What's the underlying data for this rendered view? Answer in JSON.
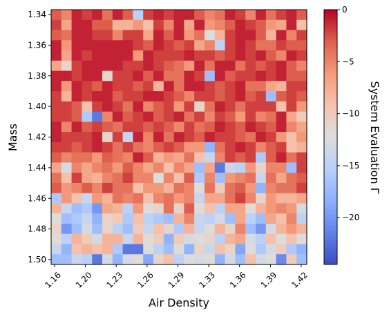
{
  "chart_data": {
    "type": "heatmap",
    "xlabel": "Air Density",
    "ylabel": "Mass",
    "colorbar_label": "System Evaluation Γ",
    "colormap": "coolwarm",
    "vmin": -24.5,
    "vmax": 0,
    "x_tick_labels": [
      "1.16",
      "1.20",
      "1.23",
      "1.26",
      "1.29",
      "1.33",
      "1.36",
      "1.39",
      "1.42"
    ],
    "y_tick_labels": [
      "1.34",
      "1.36",
      "1.38",
      "1.40",
      "1.42",
      "1.44",
      "1.46",
      "1.48",
      "1.50"
    ],
    "colorbar_tick_labels": [
      "0",
      "−5",
      "−10",
      "−15",
      "−20"
    ],
    "colorbar_tick_values": [
      0,
      -5,
      -10,
      -15,
      -20
    ],
    "x_range": [
      1.155,
      1.425
    ],
    "y_range": [
      1.335,
      1.5
    ],
    "grid": false,
    "cols": 25,
    "rows": 25,
    "values": [
      [
        -3,
        -5,
        -1,
        -2,
        -1,
        -4,
        -1,
        -3,
        -15,
        -2,
        -1,
        -2,
        -1,
        -1,
        -3,
        -5,
        -4,
        -1,
        -2,
        -5,
        -1,
        -4,
        -2,
        -1,
        -3
      ],
      [
        -2,
        -7,
        -1,
        -1,
        -3,
        -3,
        -8,
        -8,
        -6,
        -9,
        -2,
        -5,
        -1,
        -7,
        -1,
        -6,
        -5,
        -3,
        -1,
        -2,
        -3,
        -6,
        -7,
        -1,
        -9
      ],
      [
        -3,
        -4,
        -1,
        -1,
        -2,
        -2,
        -5,
        -2,
        -2,
        -7,
        -1,
        -3,
        -1,
        -6,
        -4,
        -12,
        -8,
        -2,
        -1,
        -1,
        -3,
        -8,
        -1,
        -5,
        -2
      ],
      [
        -1,
        -6,
        -1,
        -1,
        -1,
        -1,
        -1,
        -1,
        -2,
        -3,
        -1,
        -2,
        -3,
        -2,
        -7,
        -5,
        -15,
        -2,
        -1,
        -2,
        -4,
        -4,
        -2,
        -3,
        -3
      ],
      [
        -1,
        -7,
        -1,
        -2,
        -1,
        -1,
        -1,
        -1,
        -6,
        -1,
        -2,
        -2,
        -2,
        -1,
        -2,
        -2,
        -3,
        -2,
        -1,
        -2,
        -1,
        -3,
        -5,
        -1,
        -2
      ],
      [
        -7,
        -11,
        -2,
        -1,
        -1,
        -1,
        -1,
        -2,
        -2,
        -1,
        -2,
        -3,
        -4,
        -6,
        -1,
        -4,
        -1,
        -1,
        -4,
        -2,
        -3,
        -2,
        -1,
        -3,
        -5
      ],
      [
        -1,
        -1,
        -2,
        -1,
        -1,
        -11,
        -2,
        -2,
        -1,
        -3,
        -1,
        -4,
        -4,
        -1,
        -2,
        -17,
        -1,
        -3,
        -2,
        -2,
        -1,
        -2,
        -1,
        -3,
        -3
      ],
      [
        -1,
        -6,
        -1,
        -2,
        -3,
        -1,
        -2,
        -2,
        -3,
        -2,
        -8,
        -1,
        -4,
        -1,
        -1,
        -2,
        -3,
        -2,
        -1,
        -4,
        -4,
        -7,
        -8,
        -2,
        -2
      ],
      [
        -2,
        -8,
        -1,
        -2,
        -1,
        -1,
        -3,
        -2,
        -2,
        -1,
        -1,
        -2,
        -3,
        -5,
        -2,
        -2,
        -3,
        -2,
        -1,
        -3,
        -2,
        -17,
        -3,
        -2,
        -3
      ],
      [
        -2,
        -2,
        -3,
        -9,
        -2,
        -1,
        -2,
        -4,
        -1,
        -5,
        -3,
        -2,
        -6,
        -2,
        -11,
        -4,
        -1,
        -2,
        -4,
        -2,
        -2,
        -2,
        -9,
        -2,
        -6
      ],
      [
        -2,
        -2,
        -3,
        -16,
        -22,
        -5,
        -1,
        -3,
        -2,
        -1,
        -3,
        -2,
        -1,
        -4,
        -2,
        -5,
        -2,
        -3,
        -6,
        -2,
        -5,
        -4,
        -1,
        -7,
        -10
      ],
      [
        -1,
        -5,
        -1,
        -3,
        -2,
        -3,
        -4,
        -2,
        -2,
        -3,
        -2,
        -3,
        -5,
        -2,
        -4,
        -3,
        -1,
        -2,
        -3,
        -1,
        -2,
        -3,
        -1,
        -5,
        -7
      ],
      [
        -1,
        -2,
        -2,
        -2,
        -1,
        -11,
        -2,
        -14,
        -1,
        -5,
        -1,
        -4,
        -1,
        -2,
        -3,
        -1,
        -2,
        -2,
        -3,
        -4,
        -1,
        -2,
        -6,
        -9,
        -6
      ],
      [
        -2,
        -2,
        -3,
        -2,
        -1,
        -2,
        -4,
        -2,
        -4,
        -5,
        -3,
        -2,
        -3,
        -6,
        -6,
        -18,
        -4,
        -2,
        -1,
        -2,
        -5,
        -3,
        -2,
        -9,
        -8
      ],
      [
        -3,
        -5,
        -4,
        -4,
        -6,
        -3,
        -4,
        -5,
        -1,
        -3,
        -8,
        -6,
        -7,
        -4,
        -9,
        -14,
        -5,
        -2,
        -3,
        -2,
        -16,
        -3,
        -1,
        -4,
        -2
      ],
      [
        -7,
        -13,
        -5,
        -7,
        -5,
        -4,
        -6,
        -3,
        -5,
        -7,
        -5,
        -9,
        -5,
        -7,
        -17,
        -7,
        -22,
        -14,
        -15,
        -6,
        -11,
        -5,
        -5,
        -17,
        -2
      ],
      [
        -4,
        -9,
        -2,
        -7,
        -8,
        -5,
        -4,
        -2,
        -5,
        -5,
        -12,
        -5,
        -9,
        -3,
        -16,
        -5,
        -17,
        -6,
        -5,
        -4,
        -14,
        -4,
        -7,
        -4,
        -3
      ],
      [
        -3,
        -6,
        -5,
        -3,
        -5,
        -2,
        -4,
        -4,
        -9,
        -6,
        -6,
        -8,
        -4,
        -5,
        -12,
        -4,
        -10,
        -4,
        -3,
        -6,
        -18,
        -5,
        -4,
        -4,
        -2
      ],
      [
        -16,
        -6,
        -9,
        -14,
        -6,
        -8,
        -4,
        -5,
        -4,
        -9,
        -5,
        -4,
        -6,
        -5,
        -14,
        -7,
        -7,
        -4,
        -2,
        -5,
        -11,
        -6,
        -8,
        -8,
        -7
      ],
      [
        -8,
        -14,
        -17,
        -16,
        -20,
        -7,
        -8,
        -15,
        -6,
        -12,
        -11,
        -4,
        -11,
        -3,
        -12,
        -9,
        -15,
        -7,
        -7,
        -12,
        -8,
        -6,
        -5,
        -6,
        -13
      ],
      [
        -12,
        -17,
        -16,
        -14,
        -18,
        -11,
        -10,
        -16,
        -9,
        -15,
        -16,
        -17,
        -8,
        -5,
        -14,
        -15,
        -13,
        -17,
        -7,
        -15,
        -17,
        -7,
        -9,
        -5,
        -15
      ],
      [
        -11,
        -20,
        -17,
        -13,
        -17,
        -11,
        -15,
        -17,
        -10,
        -14,
        -9,
        -11,
        -16,
        -8,
        -14,
        -12,
        -8,
        -11,
        -5,
        -17,
        -20,
        -13,
        -8,
        -6,
        -8
      ],
      [
        -12,
        -15,
        -8,
        -10,
        -13,
        -8,
        -8,
        -14,
        -8,
        -12,
        -10,
        -18,
        -10,
        -13,
        -12,
        -11,
        -15,
        -8,
        -7,
        -13,
        -15,
        -9,
        -12,
        -9,
        -12
      ],
      [
        -14,
        -18,
        -9,
        -8,
        -9,
        -8,
        -16,
        -22,
        -22,
        -12,
        -15,
        -17,
        -12,
        -18,
        -11,
        -14,
        -9,
        -11,
        -19,
        -12,
        -16,
        -13,
        -10,
        -16,
        -18
      ],
      [
        -17,
        -17,
        -14,
        -15,
        -22,
        -13,
        -18,
        -13,
        -12,
        -19,
        -11,
        -9,
        -15,
        -12,
        -13,
        -12,
        -18,
        -13,
        -17,
        -9,
        -13,
        -12,
        -21,
        -10,
        -17
      ]
    ]
  }
}
